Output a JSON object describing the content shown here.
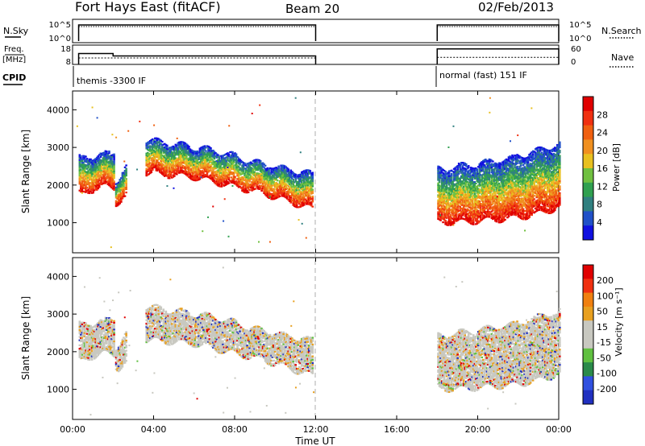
{
  "header": {
    "station": "Fort Hays East (fitACF)",
    "beam": "Beam 20",
    "date": "02/Feb/2013"
  },
  "panels": {
    "nsky": {
      "left_label": "N.Sky",
      "left_ticks": [
        "10^5",
        "10^0"
      ],
      "right_ticks": [
        "10^5",
        "10^0"
      ],
      "right_label": "N.Search"
    },
    "freq": {
      "left_label_1": "Freq.",
      "left_label_2": "[MHz]",
      "left_ticks": [
        "18",
        "8"
      ],
      "right_ticks": [
        "60",
        "0"
      ],
      "right_label": "Nave"
    },
    "cpid": {
      "label": "CPID",
      "segments": [
        "themis -3300 IF",
        "normal (fast) 151 IF"
      ]
    }
  },
  "colors": {
    "power_scale": [
      "#1010e0",
      "#2050c8",
      "#308080",
      "#30a050",
      "#70c040",
      "#e8c020",
      "#f09020",
      "#f06010",
      "#f03010",
      "#e00000"
    ],
    "velocity_scale": [
      "#2030c0",
      "#3050e0",
      "#2a8a4a",
      "#60c040",
      "#c8c8c0",
      "#c8c8c0",
      "#e8a020",
      "#f08010",
      "#f03010",
      "#e00000"
    ]
  },
  "chart_data": [
    {
      "type": "heatmap",
      "name": "power",
      "ylabel": "Slant Range [km]",
      "ylim": [
        200,
        4500
      ],
      "yticks": [
        "4000",
        "3000",
        "2000",
        "1000"
      ],
      "colorbar_label": "Power [dB]",
      "colorbar_ticks": [
        "28",
        "24",
        "20",
        "16",
        "12",
        "8",
        "4"
      ],
      "xlim_hours": [
        0,
        24
      ],
      "echo_bands": [
        {
          "t_start": 0.3,
          "t_end": 2.0,
          "range_low": [
            1700,
            1850,
            1950,
            1900
          ],
          "range_high": [
            2700,
            2750,
            2800,
            2850
          ]
        },
        {
          "t_start": 2.1,
          "t_end": 2.6,
          "range_low": [
            1500,
            1700
          ],
          "range_high": [
            2100,
            2500
          ]
        },
        {
          "t_start": 3.6,
          "t_end": 11.8,
          "range_low": [
            2300,
            2250,
            2200,
            2050,
            1900,
            1750,
            1550,
            1350
          ],
          "range_high": [
            3200,
            3100,
            3000,
            2900,
            2700,
            2550,
            2400,
            2300
          ]
        },
        {
          "t_start": 18.0,
          "t_end": 24.0,
          "range_low": [
            1000,
            1000,
            1050,
            1100,
            1200,
            1400
          ],
          "range_high": [
            2400,
            2500,
            2600,
            2700,
            2900,
            3100
          ]
        }
      ]
    },
    {
      "type": "heatmap",
      "name": "velocity",
      "ylabel": "Slant Range [km]",
      "ylim": [
        200,
        4500
      ],
      "yticks": [
        "4000",
        "3000",
        "2000",
        "1000"
      ],
      "colorbar_label": "Velocity [m s⁻¹]",
      "colorbar_ticks": [
        "200",
        "100",
        "50",
        "15",
        "-15",
        "-50",
        "-100",
        "-200"
      ],
      "xlim_hours": [
        0,
        24
      ],
      "xticks": [
        "00:00",
        "04:00",
        "08:00",
        "12:00",
        "16:00",
        "20:00",
        "00:00"
      ],
      "xlabel": "Time UT"
    }
  ],
  "timeseries": {
    "nsky_on_intervals": [
      [
        0.3,
        12.0
      ],
      [
        18.0,
        24.0
      ]
    ],
    "freq_mhz": [
      [
        0.3,
        2.0,
        13.6
      ],
      [
        2.0,
        12.0,
        12.4
      ],
      [
        18.0,
        24.0,
        16.0
      ]
    ],
    "nave": [
      [
        0.3,
        12.0,
        20
      ],
      [
        18.0,
        24.0,
        22
      ]
    ],
    "midline_hour": 12
  }
}
